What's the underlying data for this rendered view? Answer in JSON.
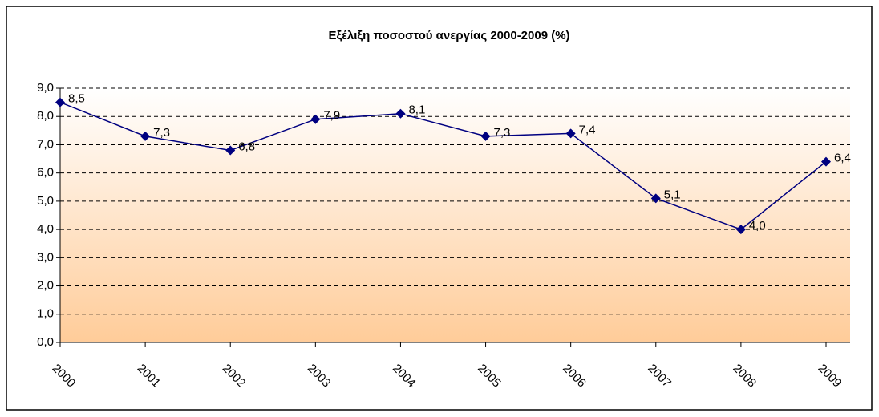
{
  "chart_data": {
    "type": "line",
    "title": "Εξέλιξη ποσοστού ανεργίας 2000-2009 (%)",
    "categories": [
      "2000",
      "2001",
      "2002",
      "2003",
      "2004",
      "2005",
      "2006",
      "2007",
      "2008",
      "2009"
    ],
    "series": [
      {
        "color": "#000080",
        "values": [
          8.5,
          7.3,
          6.8,
          7.9,
          8.1,
          7.3,
          7.4,
          5.1,
          4.0,
          6.4
        ],
        "value_labels": [
          "8,5",
          "7,3",
          "6,8",
          "7,9",
          "8,1",
          "7,3",
          "7,4",
          "5,1",
          "4,0",
          "6,4"
        ]
      }
    ],
    "ylim": [
      0,
      9
    ],
    "yticks": [
      {
        "value": 0,
        "label": "0,0"
      },
      {
        "value": 1,
        "label": "1,0"
      },
      {
        "value": 2,
        "label": "2,0"
      },
      {
        "value": 3,
        "label": "3,0"
      },
      {
        "value": 4,
        "label": "4,0"
      },
      {
        "value": 5,
        "label": "5,0"
      },
      {
        "value": 6,
        "label": "6,0"
      },
      {
        "value": 7,
        "label": "7,0"
      },
      {
        "value": 8,
        "label": "8,0"
      },
      {
        "value": 9,
        "label": "9,0"
      }
    ],
    "grid": true
  }
}
